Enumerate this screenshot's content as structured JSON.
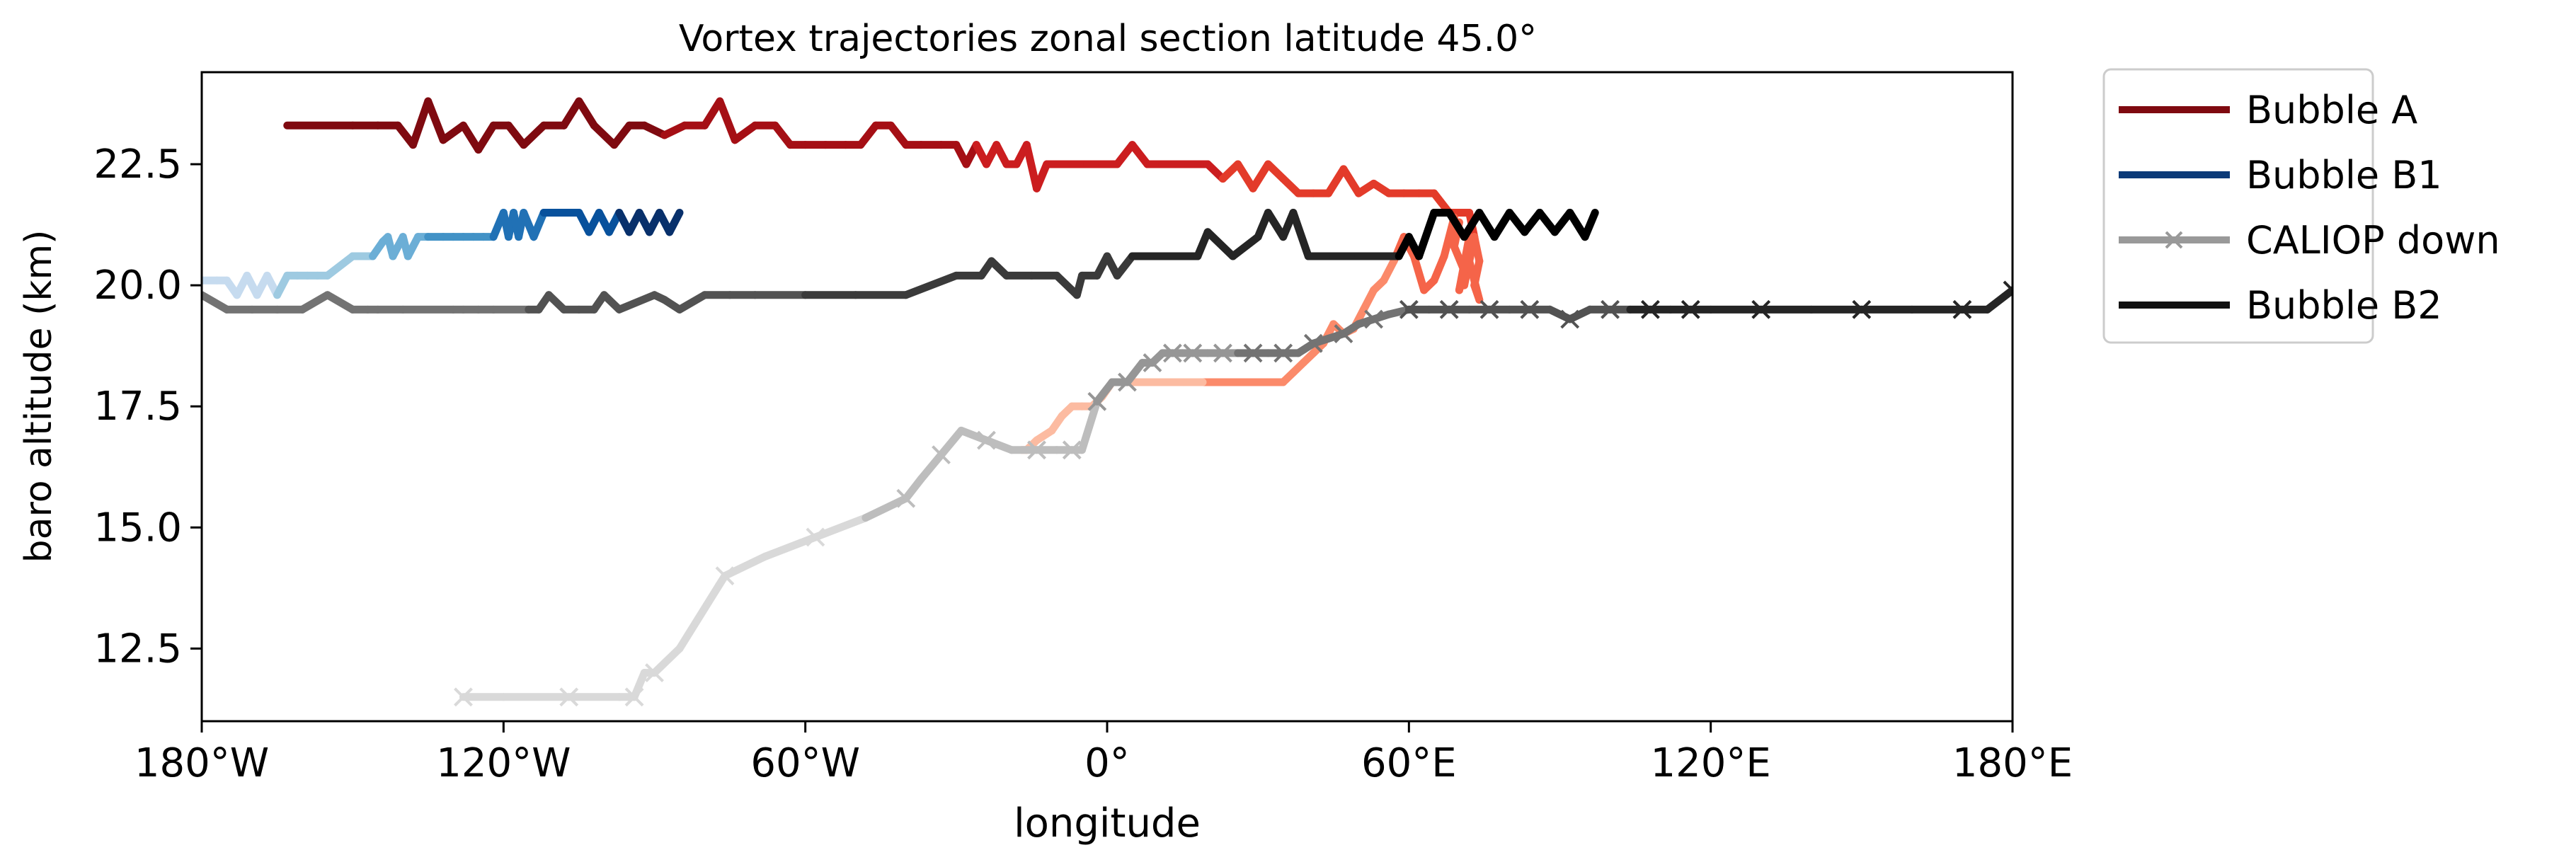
{
  "chart_data": {
    "type": "line",
    "title": "Vortex trajectories zonal section latitude 45.0°",
    "xlabel": "longitude",
    "ylabel": "baro altitude (km)",
    "xlim": [
      -180,
      180
    ],
    "ylim": [
      11.0,
      24.4
    ],
    "xticks": [
      {
        "value": -180,
        "label": "180°W"
      },
      {
        "value": -120,
        "label": "120°W"
      },
      {
        "value": -60,
        "label": "60°W"
      },
      {
        "value": 0,
        "label": "0°"
      },
      {
        "value": 60,
        "label": "60°E"
      },
      {
        "value": 120,
        "label": "120°E"
      },
      {
        "value": 180,
        "label": "180°E"
      }
    ],
    "yticks": [
      {
        "value": 12.5,
        "label": "12.5"
      },
      {
        "value": 15.0,
        "label": "15.0"
      },
      {
        "value": 17.5,
        "label": "17.5"
      },
      {
        "value": 20.0,
        "label": "20.0"
      },
      {
        "value": 22.5,
        "label": "22.5"
      }
    ],
    "grid": false,
    "legend_position": "outside-top-right",
    "legend": [
      {
        "name": "Bubble A",
        "color": "#7f0a10",
        "marker": "none"
      },
      {
        "name": "Bubble B1",
        "color": "#0b3a78",
        "marker": "none"
      },
      {
        "name": "CALIOP down",
        "color": "#999999",
        "marker": "x"
      },
      {
        "name": "Bubble B2",
        "color": "#111111",
        "marker": "none"
      }
    ],
    "series": [
      {
        "colors": [
          "#7f0a10",
          "#a50f15",
          "#cb1d1f",
          "#e33b2a",
          "#f56449",
          "#fb8a6a",
          "#fcbba1"
        ],
        "marker": "none",
        "x": [
          -163,
          -150,
          -145,
          -141,
          -138,
          -135,
          -132,
          -128,
          -125,
          -122,
          -119,
          -116,
          -112,
          -108,
          -105,
          -102,
          -98,
          -95,
          -92,
          -88,
          -84,
          -80,
          -77,
          -74,
          -70,
          -66,
          -63,
          -60,
          -56,
          -52,
          -49,
          -46,
          -43,
          -40,
          -37,
          -33,
          -30,
          -28,
          -26,
          -24,
          -22,
          -20,
          -18,
          -16,
          -14,
          -12,
          -10,
          -7,
          -4,
          -1,
          2,
          5,
          8,
          11,
          14,
          17,
          20,
          23,
          26,
          29,
          32,
          35,
          38,
          41,
          44,
          47,
          50,
          53,
          56,
          59,
          62,
          65,
          68,
          70,
          72,
          73,
          74,
          73,
          74,
          72,
          73,
          71,
          72,
          70,
          71,
          69,
          70,
          68,
          69,
          67,
          65,
          63,
          61,
          59,
          57,
          55,
          53,
          51,
          49,
          47,
          45,
          43,
          41,
          39,
          37,
          35,
          33,
          31,
          29,
          27,
          25,
          23,
          21,
          19,
          17,
          15,
          13,
          11,
          9,
          7,
          5,
          3,
          1,
          -1,
          -3,
          -5,
          -7,
          -9,
          -11,
          -14,
          -16,
          -17
        ],
        "y": [
          23.3,
          23.3,
          23.3,
          23.3,
          22.9,
          23.8,
          23.0,
          23.3,
          22.8,
          23.3,
          23.3,
          22.9,
          23.3,
          23.3,
          23.8,
          23.3,
          22.9,
          23.3,
          23.3,
          23.1,
          23.3,
          23.3,
          23.8,
          23.0,
          23.3,
          23.3,
          22.9,
          22.9,
          22.9,
          22.9,
          22.9,
          23.3,
          23.3,
          22.9,
          22.9,
          22.9,
          22.9,
          22.5,
          22.9,
          22.5,
          22.9,
          22.5,
          22.5,
          22.9,
          22.0,
          22.5,
          22.5,
          22.5,
          22.5,
          22.5,
          22.5,
          22.9,
          22.5,
          22.5,
          22.5,
          22.5,
          22.5,
          22.2,
          22.5,
          22.0,
          22.5,
          22.2,
          21.9,
          21.9,
          21.9,
          22.4,
          21.9,
          22.1,
          21.9,
          21.9,
          21.9,
          21.9,
          21.5,
          21.5,
          21.5,
          21.0,
          20.5,
          20.0,
          19.7,
          20.5,
          21.0,
          20.0,
          21.0,
          19.9,
          20.3,
          20.8,
          21.3,
          20.9,
          21.4,
          20.6,
          20.1,
          19.9,
          20.6,
          21.0,
          20.5,
          20.1,
          19.9,
          19.5,
          19.1,
          19.0,
          19.2,
          18.8,
          18.6,
          18.4,
          18.2,
          18.0,
          18.0,
          18.0,
          18.0,
          18.0,
          18.0,
          18.0,
          18.0,
          18.0,
          18.0,
          18.0,
          18.0,
          18.0,
          18.0,
          18.0,
          18.0,
          18.0,
          18.0,
          17.7,
          17.5,
          17.5,
          17.5,
          17.3,
          17.0,
          16.8,
          16.6,
          16.6
        ]
      },
      {
        "colors": [
          "#c6dbef",
          "#9ecae1",
          "#6baed6",
          "#4292c6",
          "#2171b5",
          "#08519c",
          "#08306b"
        ],
        "marker": "none",
        "x": [
          -180,
          -177,
          -175,
          -173,
          -171,
          -169,
          -167,
          -165,
          -163,
          -161,
          -159,
          -157,
          -155,
          -150,
          -146,
          -144,
          -143,
          -142,
          -140,
          -139,
          -137,
          -135,
          -132,
          -130,
          -128,
          -126,
          -124,
          -122,
          -120,
          -119,
          -118,
          -117,
          -116,
          -114,
          -112,
          -109,
          -107,
          -105,
          -103,
          -101,
          -99,
          -97,
          -95,
          -93,
          -91,
          -89,
          -87,
          -85
        ],
        "y": [
          20.1,
          20.1,
          20.1,
          19.8,
          20.2,
          19.8,
          20.2,
          19.8,
          20.2,
          20.2,
          20.2,
          20.2,
          20.2,
          20.6,
          20.6,
          20.9,
          21.0,
          20.6,
          21.0,
          20.6,
          21.0,
          21.0,
          21.0,
          21.0,
          21.0,
          21.0,
          21.0,
          21.0,
          21.5,
          21.0,
          21.5,
          21.0,
          21.5,
          21.0,
          21.5,
          21.5,
          21.5,
          21.5,
          21.1,
          21.5,
          21.1,
          21.5,
          21.1,
          21.5,
          21.1,
          21.5,
          21.1,
          21.5
        ]
      },
      {
        "colors": [
          "#d9d9d9",
          "#bdbdbd",
          "#969696",
          "#737373",
          "#525252",
          "#252525"
        ],
        "marker": "x",
        "x": [
          -128,
          -120,
          -107,
          -97,
          -94,
          -92,
          -90,
          -85,
          -76,
          -68,
          -58,
          -48,
          -40,
          -37,
          -33,
          -29,
          -24,
          -19,
          -14,
          -10,
          -7,
          -5,
          -2,
          1,
          4,
          7,
          9,
          11,
          13,
          15,
          17,
          20,
          23,
          26,
          29,
          32,
          35,
          38,
          41,
          44,
          47,
          50,
          53,
          56,
          60,
          64,
          68,
          72,
          76,
          80,
          84,
          88,
          92,
          96,
          100,
          104,
          108,
          112,
          116,
          120,
          130,
          140,
          150,
          160,
          170,
          175,
          180
        ],
        "y": [
          11.5,
          11.5,
          11.5,
          11.5,
          11.5,
          12.0,
          12.0,
          12.5,
          14.0,
          14.4,
          14.8,
          15.2,
          15.6,
          16.0,
          16.5,
          17.0,
          16.8,
          16.6,
          16.6,
          16.6,
          16.6,
          16.6,
          17.6,
          18.0,
          18.0,
          18.4,
          18.4,
          18.6,
          18.6,
          18.6,
          18.6,
          18.6,
          18.6,
          18.6,
          18.6,
          18.6,
          18.6,
          18.6,
          18.8,
          18.9,
          19.0,
          19.2,
          19.3,
          19.4,
          19.5,
          19.5,
          19.5,
          19.5,
          19.5,
          19.5,
          19.5,
          19.5,
          19.3,
          19.5,
          19.5,
          19.5,
          19.5,
          19.5,
          19.5,
          19.5,
          19.5,
          19.5,
          19.5,
          19.5,
          19.5,
          19.5,
          19.9
        ]
      },
      {
        "colors": [
          "#737373",
          "#525252",
          "#3a3a3a",
          "#252525",
          "#000000"
        ],
        "marker": "none",
        "x": [
          -180,
          -175,
          -170,
          -165,
          -160,
          -155,
          -150,
          -147,
          -145,
          -140,
          -130,
          -128,
          -125,
          -122,
          -115,
          -113,
          -111,
          -108,
          -105,
          -102,
          -100,
          -97,
          -90,
          -88,
          -85,
          -80,
          -75,
          -70,
          -60,
          -50,
          -40,
          -30,
          -25,
          -23,
          -20,
          -15,
          -10,
          -6,
          -5,
          -2,
          0,
          2,
          5,
          10,
          15,
          18,
          20,
          25,
          30,
          32,
          35,
          37,
          40,
          45,
          50,
          55,
          58,
          60,
          62,
          65,
          68,
          71,
          74,
          77,
          80,
          83,
          86,
          89,
          92,
          95,
          97
        ],
        "y": [
          19.8,
          19.5,
          19.5,
          19.5,
          19.5,
          19.8,
          19.5,
          19.5,
          19.5,
          19.5,
          19.5,
          19.5,
          19.5,
          19.5,
          19.5,
          19.5,
          19.8,
          19.5,
          19.5,
          19.5,
          19.8,
          19.5,
          19.8,
          19.7,
          19.5,
          19.8,
          19.8,
          19.8,
          19.8,
          19.8,
          19.8,
          20.2,
          20.2,
          20.5,
          20.2,
          20.2,
          20.2,
          19.8,
          20.2,
          20.2,
          20.6,
          20.2,
          20.6,
          20.6,
          20.6,
          20.6,
          21.1,
          20.6,
          21.0,
          21.5,
          21.0,
          21.5,
          20.6,
          20.6,
          20.6,
          20.6,
          20.6,
          21.0,
          20.6,
          21.5,
          21.5,
          21.0,
          21.5,
          21.0,
          21.5,
          21.1,
          21.5,
          21.1,
          21.5,
          21.0,
          21.5
        ]
      }
    ]
  }
}
